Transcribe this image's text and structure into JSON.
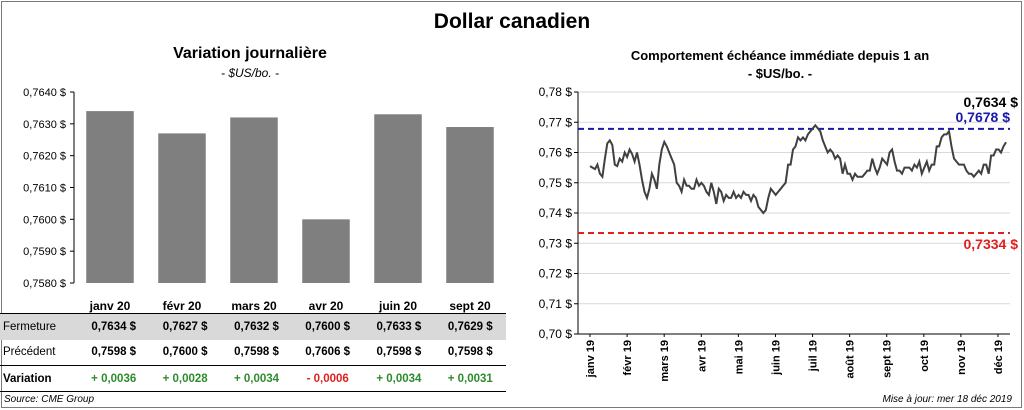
{
  "title": "Dollar canadien",
  "left_panel": {
    "title": "Variation  journalière",
    "subtitle": "- $US/bo. -"
  },
  "right_panel": {
    "title": "Comportement échéance immédiate depuis 1 an",
    "subtitle": "- $US/bo. -"
  },
  "table": {
    "row_labels": {
      "close": "Fermeture",
      "previous": "Précédent",
      "change": "Variation"
    },
    "close": [
      "0,7634  $",
      "0,7627  $",
      "0,7632  $",
      "0,7600  $",
      "0,7633  $",
      "0,7629  $"
    ],
    "previous": [
      "0,7598  $",
      "0,7600  $",
      "0,7598  $",
      "0,7606  $",
      "0,7598  $",
      "0,7598  $"
    ],
    "change": [
      "+ 0,0036",
      "+ 0,0028",
      "+ 0,0034",
      "- 0,0006",
      "+ 0,0034",
      "+ 0,0031"
    ],
    "change_sign": [
      "pos",
      "pos",
      "pos",
      "neg",
      "pos",
      "pos"
    ]
  },
  "footer": {
    "source": "Source: CME Group",
    "updated": "Mise à jour: mer 18 déc 2019"
  },
  "colors": {
    "bar": "#7f7f7f",
    "line": "#404040",
    "high": "#1a1aaa",
    "low": "#e02020",
    "positive": "#2e8b2e",
    "negative": "#e02020"
  },
  "chart_data": [
    {
      "type": "bar",
      "title": "Variation  journalière",
      "subtitle": "- $US/bo. -",
      "categories": [
        "janv 20",
        "févr 20",
        "mars 20",
        "avr 20",
        "juin 20",
        "sept 20"
      ],
      "values": [
        0.7634,
        0.7627,
        0.7632,
        0.76,
        0.7633,
        0.7629
      ],
      "ylim": [
        0.758,
        0.764
      ],
      "yticks": [
        "0,7640 $",
        "0,7630 $",
        "0,7620 $",
        "0,7610 $",
        "0,7600 $",
        "0,7590 $",
        "0,7580 $"
      ],
      "grid": false
    },
    {
      "type": "line",
      "title": "Comportement échéance immédiate depuis 1 an",
      "subtitle": "- $US/bo. -",
      "ylim": [
        0.7,
        0.78
      ],
      "yticks": [
        "0,78 $",
        "0,77 $",
        "0,76 $",
        "0,75 $",
        "0,74 $",
        "0,73 $",
        "0,72 $",
        "0,71 $",
        "0,70 $"
      ],
      "xticks": [
        "janv 19",
        "févr 19",
        "mars 19",
        "avr 19",
        "mai 19",
        "juin 19",
        "juil 19",
        "août 19",
        "sept 19",
        "oct 19",
        "nov 19",
        "déc 19"
      ],
      "grid": true,
      "series": [
        {
          "values": [
            0.7555,
            0.755,
            0.7545,
            0.756,
            0.753,
            0.752,
            0.758,
            0.763,
            0.764,
            0.7625,
            0.756,
            0.7555,
            0.758,
            0.757,
            0.76,
            0.7585,
            0.761,
            0.7595,
            0.757,
            0.76,
            0.756,
            0.751,
            0.747,
            0.745,
            0.748,
            0.753,
            0.751,
            0.748,
            0.756,
            0.761,
            0.7635,
            0.762,
            0.76,
            0.758,
            0.756,
            0.75,
            0.749,
            0.747,
            0.751,
            0.749,
            0.749,
            0.748,
            0.748,
            0.751,
            0.749,
            0.75,
            0.749,
            0.747,
            0.746,
            0.75,
            0.747,
            0.743,
            0.748,
            0.747,
            0.744,
            0.746,
            0.745,
            0.745,
            0.747,
            0.745,
            0.746,
            0.745,
            0.747,
            0.746,
            0.746,
            0.744,
            0.746,
            0.745,
            0.742,
            0.741,
            0.74,
            0.741,
            0.745,
            0.748,
            0.747,
            0.746,
            0.747,
            0.748,
            0.749,
            0.75,
            0.756,
            0.756,
            0.761,
            0.762,
            0.765,
            0.764,
            0.765,
            0.764,
            0.766,
            0.767,
            0.768,
            0.769,
            0.768,
            0.767,
            0.764,
            0.762,
            0.76,
            0.761,
            0.76,
            0.758,
            0.759,
            0.758,
            0.753,
            0.756,
            0.753,
            0.753,
            0.751,
            0.753,
            0.752,
            0.752,
            0.752,
            0.753,
            0.754,
            0.754,
            0.758,
            0.755,
            0.753,
            0.755,
            0.758,
            0.757,
            0.756,
            0.76,
            0.761,
            0.757,
            0.754,
            0.754,
            0.753,
            0.755,
            0.755,
            0.755,
            0.754,
            0.756,
            0.755,
            0.757,
            0.753,
            0.755,
            0.757,
            0.754,
            0.756,
            0.756,
            0.762,
            0.762,
            0.765,
            0.766,
            0.766,
            0.767,
            0.762,
            0.758,
            0.757,
            0.756,
            0.756,
            0.756,
            0.754,
            0.753,
            0.753,
            0.752,
            0.753,
            0.754,
            0.753,
            0.756,
            0.756,
            0.753,
            0.759,
            0.759,
            0.761,
            0.761,
            0.76,
            0.762,
            0.7634
          ]
        }
      ],
      "reference_lines": [
        {
          "label": "0,7678  $",
          "value": 0.7678,
          "color": "#1a1aaa",
          "style": "dashed"
        },
        {
          "label": "0,7334  $",
          "value": 0.7334,
          "color": "#e02020",
          "style": "dashed"
        }
      ],
      "last_value_label": "0,7634  $"
    }
  ]
}
